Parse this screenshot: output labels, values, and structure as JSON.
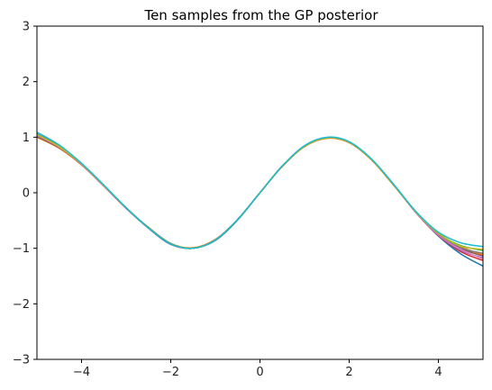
{
  "chart_data": {
    "type": "line",
    "title": "Ten samples from the GP posterior",
    "xlabel": "",
    "ylabel": "",
    "xlim": [
      -5,
      5
    ],
    "ylim": [
      -3,
      3
    ],
    "xticks": [
      -4,
      -2,
      0,
      2,
      4
    ],
    "yticks": [
      -3,
      -2,
      -1,
      0,
      1,
      2,
      3
    ],
    "grid": false,
    "legend": "none",
    "x": [
      -5,
      -4.5,
      -4,
      -3.5,
      -3,
      -2.5,
      -2,
      -1.5,
      -1,
      -0.5,
      0,
      0.5,
      1,
      1.5,
      2,
      2.5,
      3,
      3.5,
      4,
      4.5,
      5
    ],
    "series": [
      {
        "color": "#1f77b4",
        "values": [
          1.06,
          0.84,
          0.52,
          0.13,
          -0.28,
          -0.64,
          -0.93,
          -1.0,
          -0.86,
          -0.49,
          0.0,
          0.48,
          0.84,
          0.99,
          0.91,
          0.6,
          0.14,
          -0.36,
          -0.78,
          -1.1,
          -1.32
        ]
      },
      {
        "color": "#ff7f0e",
        "values": [
          1.0,
          0.8,
          0.5,
          0.12,
          -0.28,
          -0.62,
          -0.91,
          -0.99,
          -0.84,
          -0.48,
          0.0,
          0.47,
          0.83,
          0.98,
          0.9,
          0.59,
          0.13,
          -0.35,
          -0.73,
          -0.97,
          -1.12
        ]
      },
      {
        "color": "#2ca02c",
        "values": [
          1.04,
          0.83,
          0.52,
          0.13,
          -0.27,
          -0.63,
          -0.92,
          -1.0,
          -0.85,
          -0.48,
          0.0,
          0.48,
          0.84,
          0.99,
          0.91,
          0.6,
          0.14,
          -0.35,
          -0.74,
          -0.95,
          -1.04
        ]
      },
      {
        "color": "#d62728",
        "values": [
          1.02,
          0.82,
          0.51,
          0.12,
          -0.28,
          -0.63,
          -0.92,
          -1.0,
          -0.85,
          -0.48,
          0.0,
          0.48,
          0.84,
          0.99,
          0.91,
          0.6,
          0.14,
          -0.36,
          -0.77,
          -1.06,
          -1.22
        ]
      },
      {
        "color": "#9467bd",
        "values": [
          1.05,
          0.83,
          0.52,
          0.13,
          -0.27,
          -0.63,
          -0.92,
          -1.0,
          -0.85,
          -0.48,
          0.0,
          0.48,
          0.84,
          0.99,
          0.91,
          0.6,
          0.14,
          -0.36,
          -0.76,
          -1.04,
          -1.17
        ]
      },
      {
        "color": "#8c564b",
        "values": [
          1.01,
          0.81,
          0.51,
          0.12,
          -0.28,
          -0.63,
          -0.92,
          -1.0,
          -0.85,
          -0.48,
          0.0,
          0.48,
          0.84,
          0.99,
          0.91,
          0.6,
          0.14,
          -0.35,
          -0.75,
          -1.0,
          -1.14
        ]
      },
      {
        "color": "#e377c2",
        "values": [
          1.03,
          0.82,
          0.51,
          0.12,
          -0.28,
          -0.63,
          -0.92,
          -1.0,
          -0.85,
          -0.48,
          0.0,
          0.48,
          0.84,
          0.99,
          0.91,
          0.6,
          0.14,
          -0.36,
          -0.76,
          -1.02,
          -1.19
        ]
      },
      {
        "color": "#7f7f7f",
        "values": [
          1.04,
          0.83,
          0.52,
          0.13,
          -0.27,
          -0.63,
          -0.92,
          -1.0,
          -0.85,
          -0.48,
          0.0,
          0.48,
          0.84,
          0.99,
          0.91,
          0.6,
          0.14,
          -0.35,
          -0.74,
          -0.99,
          -1.09
        ]
      },
      {
        "color": "#bcbd22",
        "values": [
          1.05,
          0.83,
          0.52,
          0.13,
          -0.27,
          -0.63,
          -0.92,
          -1.0,
          -0.85,
          -0.48,
          0.0,
          0.48,
          0.84,
          0.99,
          0.91,
          0.6,
          0.14,
          -0.35,
          -0.73,
          -0.96,
          -1.02
        ]
      },
      {
        "color": "#17becf",
        "values": [
          1.09,
          0.86,
          0.53,
          0.14,
          -0.27,
          -0.63,
          -0.92,
          -1.0,
          -0.85,
          -0.48,
          0.0,
          0.48,
          0.85,
          1.0,
          0.92,
          0.61,
          0.15,
          -0.34,
          -0.71,
          -0.9,
          -0.97
        ]
      }
    ]
  }
}
